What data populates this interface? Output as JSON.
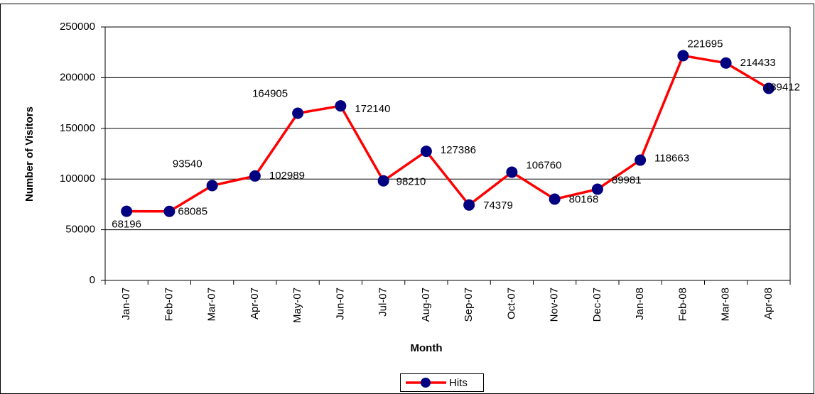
{
  "chart_data": {
    "type": "line",
    "x_label": "Month",
    "y_label": "Number of Visitors",
    "categories": [
      "Jan-07",
      "Feb-07",
      "Mar-07",
      "Apr-07",
      "May-07",
      "Jun-07",
      "Jul-07",
      "Aug-07",
      "Sep-07",
      "Oct-07",
      "Nov-07",
      "Dec-07",
      "Jan-08",
      "Feb-08",
      "Mar-08",
      "Apr-08"
    ],
    "series": [
      {
        "name": "Hits",
        "color": "#ff0000",
        "marker_color": "#000080",
        "values": [
          68196,
          68085,
          93540,
          102989,
          164905,
          172140,
          98210,
          127386,
          74379,
          106760,
          80168,
          89981,
          118663,
          221695,
          214433,
          189412
        ]
      }
    ],
    "ylim": [
      0,
      250000
    ],
    "yticks": [
      0,
      50000,
      100000,
      150000,
      200000,
      250000
    ],
    "grid": true,
    "legend": "bottom"
  }
}
